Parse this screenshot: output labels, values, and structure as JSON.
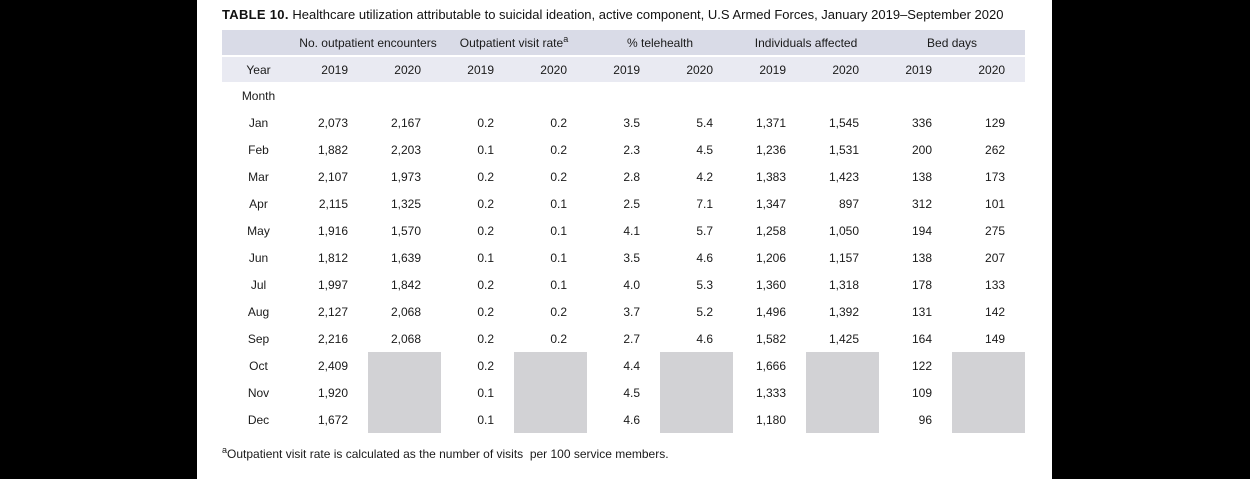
{
  "title": {
    "label": "TABLE 10.",
    "text": " Healthcare utilization attributable to suicidal ideation, active component, U.S Armed Forces, January 2019–September 2020"
  },
  "colors": {
    "page_background": "#000000",
    "panel_background": "#ffffff",
    "header_band_top": "#d9dbe7",
    "header_band_year": "#e9eaf2",
    "masked_cell": "#d2d2d5",
    "text": "#1a1a1a"
  },
  "table": {
    "group_headers": [
      {
        "label": "No. outpatient encounters",
        "superscript": ""
      },
      {
        "label": "Outpatient visit rate",
        "superscript": "a"
      },
      {
        "label": "% telehealth",
        "superscript": ""
      },
      {
        "label": "Individuals affected",
        "superscript": ""
      },
      {
        "label": "Bed days",
        "superscript": ""
      }
    ],
    "year_row_label": "Year",
    "years": [
      "2019",
      "2020",
      "2019",
      "2020",
      "2019",
      "2020",
      "2019",
      "2020",
      "2019",
      "2020"
    ],
    "month_label": "Month",
    "rows": [
      {
        "month": "Jan",
        "values": [
          "2,073",
          "2,167",
          "0.2",
          "0.2",
          "3.5",
          "5.4",
          "1,371",
          "1,545",
          "336",
          "129"
        ]
      },
      {
        "month": "Feb",
        "values": [
          "1,882",
          "2,203",
          "0.1",
          "0.2",
          "2.3",
          "4.5",
          "1,236",
          "1,531",
          "200",
          "262"
        ]
      },
      {
        "month": "Mar",
        "values": [
          "2,107",
          "1,973",
          "0.2",
          "0.2",
          "2.8",
          "4.2",
          "1,383",
          "1,423",
          "138",
          "173"
        ]
      },
      {
        "month": "Apr",
        "values": [
          "2,115",
          "1,325",
          "0.2",
          "0.1",
          "2.5",
          "7.1",
          "1,347",
          "897",
          "312",
          "101"
        ]
      },
      {
        "month": "May",
        "values": [
          "1,916",
          "1,570",
          "0.2",
          "0.1",
          "4.1",
          "5.7",
          "1,258",
          "1,050",
          "194",
          "275"
        ]
      },
      {
        "month": "Jun",
        "values": [
          "1,812",
          "1,639",
          "0.1",
          "0.1",
          "3.5",
          "4.6",
          "1,206",
          "1,157",
          "138",
          "207"
        ]
      },
      {
        "month": "Jul",
        "values": [
          "1,997",
          "1,842",
          "0.2",
          "0.1",
          "4.0",
          "5.3",
          "1,360",
          "1,318",
          "178",
          "133"
        ]
      },
      {
        "month": "Aug",
        "values": [
          "2,127",
          "2,068",
          "0.2",
          "0.2",
          "3.7",
          "5.2",
          "1,496",
          "1,392",
          "131",
          "142"
        ]
      },
      {
        "month": "Sep",
        "values": [
          "2,216",
          "2,068",
          "0.2",
          "0.2",
          "2.7",
          "4.6",
          "1,582",
          "1,425",
          "164",
          "149"
        ]
      },
      {
        "month": "Oct",
        "values": [
          "2,409",
          "",
          "0.2",
          "",
          "4.4",
          "",
          "1,666",
          "",
          "122",
          ""
        ]
      },
      {
        "month": "Nov",
        "values": [
          "1,920",
          "",
          "0.1",
          "",
          "4.5",
          "",
          "1,333",
          "",
          "109",
          ""
        ]
      },
      {
        "month": "Dec",
        "values": [
          "1,672",
          "",
          "0.1",
          "",
          "4.6",
          "",
          "1,180",
          "",
          "96",
          ""
        ]
      }
    ]
  },
  "footnote": {
    "superscript": "a",
    "text": "Outpatient visit rate is calculated as the number of visits  per 100 service members."
  }
}
